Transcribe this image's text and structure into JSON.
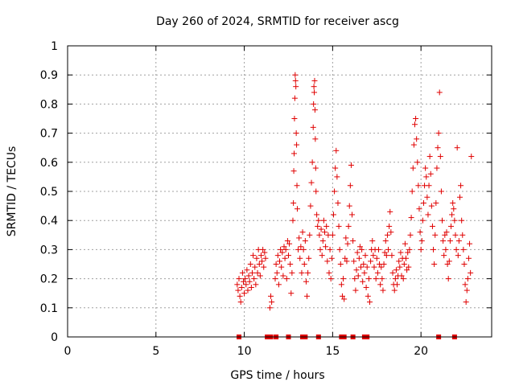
{
  "chart_data": {
    "type": "scatter",
    "title": "Day 260 of 2024, SRMTID for receiver ascg",
    "xlabel": "GPS time / hours",
    "ylabel": "SRMTID / TECUs",
    "xlim": [
      0,
      24
    ],
    "ylim": [
      0,
      1
    ],
    "xticks": [
      0,
      5,
      10,
      15,
      20
    ],
    "xtick_labels": [
      "0",
      "5",
      "10",
      "15",
      "20"
    ],
    "yticks": [
      0,
      0.1,
      0.2,
      0.3,
      0.4,
      0.5,
      0.6,
      0.7,
      0.8,
      0.9,
      1
    ],
    "ytick_labels": [
      "0",
      "0.1",
      "0.2",
      "0.3",
      "0.4",
      "0.5",
      "0.6",
      "0.7",
      "0.8",
      "0.9",
      "1"
    ],
    "grid": true,
    "marker": "+",
    "color": "#e00000",
    "series": [
      {
        "name": "SRMTID",
        "points": [
          [
            9.6,
            0.18
          ],
          [
            9.65,
            0.16
          ],
          [
            9.7,
            0.2
          ],
          [
            9.75,
            0.14
          ],
          [
            9.8,
            0.12
          ],
          [
            9.85,
            0.17
          ],
          [
            9.9,
            0.22
          ],
          [
            9.95,
            0.19
          ],
          [
            10.0,
            0.15
          ],
          [
            10.05,
            0.2
          ],
          [
            10.1,
            0.18
          ],
          [
            10.15,
            0.23
          ],
          [
            10.2,
            0.16
          ],
          [
            10.25,
            0.21
          ],
          [
            10.3,
            0.19
          ],
          [
            10.35,
            0.25
          ],
          [
            10.4,
            0.17
          ],
          [
            10.45,
            0.22
          ],
          [
            10.5,
            0.28
          ],
          [
            10.55,
            0.2
          ],
          [
            10.6,
            0.24
          ],
          [
            10.65,
            0.18
          ],
          [
            10.7,
            0.27
          ],
          [
            10.75,
            0.22
          ],
          [
            10.8,
            0.3
          ],
          [
            10.85,
            0.25
          ],
          [
            10.9,
            0.21
          ],
          [
            10.95,
            0.28
          ],
          [
            11.0,
            0.26
          ],
          [
            11.05,
            0.3
          ],
          [
            11.1,
            0.24
          ],
          [
            11.15,
            0.29
          ],
          [
            11.2,
            0.27
          ],
          [
            11.45,
            0.1
          ],
          [
            11.5,
            0.14
          ],
          [
            11.55,
            0.12
          ],
          [
            11.75,
            0.2
          ],
          [
            11.8,
            0.25
          ],
          [
            11.85,
            0.22
          ],
          [
            11.9,
            0.28
          ],
          [
            11.95,
            0.18
          ],
          [
            12.0,
            0.26
          ],
          [
            12.05,
            0.3
          ],
          [
            12.1,
            0.24
          ],
          [
            12.15,
            0.29
          ],
          [
            12.2,
            0.21
          ],
          [
            12.25,
            0.31
          ],
          [
            12.3,
            0.27
          ],
          [
            12.35,
            0.3
          ],
          [
            12.4,
            0.2
          ],
          [
            12.45,
            0.33
          ],
          [
            12.5,
            0.28
          ],
          [
            12.55,
            0.32
          ],
          [
            12.6,
            0.25
          ],
          [
            12.65,
            0.15
          ],
          [
            12.7,
            0.22
          ],
          [
            12.75,
            0.4
          ],
          [
            12.78,
            0.46
          ],
          [
            12.8,
            0.57
          ],
          [
            12.82,
            0.63
          ],
          [
            12.84,
            0.75
          ],
          [
            12.86,
            0.82
          ],
          [
            12.88,
            0.9
          ],
          [
            12.9,
            0.88
          ],
          [
            12.92,
            0.86
          ],
          [
            12.94,
            0.7
          ],
          [
            12.96,
            0.66
          ],
          [
            12.98,
            0.52
          ],
          [
            13.0,
            0.44
          ],
          [
            13.05,
            0.3
          ],
          [
            13.1,
            0.34
          ],
          [
            13.15,
            0.27
          ],
          [
            13.2,
            0.31
          ],
          [
            13.25,
            0.22
          ],
          [
            13.3,
            0.36
          ],
          [
            13.35,
            0.3
          ],
          [
            13.4,
            0.25
          ],
          [
            13.45,
            0.33
          ],
          [
            13.5,
            0.19
          ],
          [
            13.55,
            0.14
          ],
          [
            13.6,
            0.22
          ],
          [
            13.65,
            0.27
          ],
          [
            13.7,
            0.35
          ],
          [
            13.75,
            0.45
          ],
          [
            13.8,
            0.53
          ],
          [
            13.85,
            0.6
          ],
          [
            13.9,
            0.72
          ],
          [
            13.92,
            0.8
          ],
          [
            13.94,
            0.86
          ],
          [
            13.96,
            0.84
          ],
          [
            13.98,
            0.88
          ],
          [
            14.0,
            0.78
          ],
          [
            14.02,
            0.68
          ],
          [
            14.04,
            0.58
          ],
          [
            14.06,
            0.5
          ],
          [
            14.1,
            0.42
          ],
          [
            14.15,
            0.38
          ],
          [
            14.2,
            0.4
          ],
          [
            14.25,
            0.35
          ],
          [
            14.3,
            0.3
          ],
          [
            14.35,
            0.37
          ],
          [
            14.4,
            0.28
          ],
          [
            14.45,
            0.33
          ],
          [
            14.5,
            0.4
          ],
          [
            14.55,
            0.36
          ],
          [
            14.6,
            0.31
          ],
          [
            14.65,
            0.38
          ],
          [
            14.7,
            0.26
          ],
          [
            14.75,
            0.35
          ],
          [
            14.8,
            0.22
          ],
          [
            14.85,
            0.3
          ],
          [
            14.9,
            0.2
          ],
          [
            14.95,
            0.27
          ],
          [
            15.0,
            0.35
          ],
          [
            15.05,
            0.42
          ],
          [
            15.1,
            0.5
          ],
          [
            15.15,
            0.58
          ],
          [
            15.2,
            0.64
          ],
          [
            15.25,
            0.55
          ],
          [
            15.3,
            0.46
          ],
          [
            15.35,
            0.38
          ],
          [
            15.4,
            0.3
          ],
          [
            15.45,
            0.25
          ],
          [
            15.5,
            0.18
          ],
          [
            15.55,
            0.14
          ],
          [
            15.6,
            0.2
          ],
          [
            15.65,
            0.13
          ],
          [
            15.7,
            0.27
          ],
          [
            15.75,
            0.34
          ],
          [
            15.8,
            0.26
          ],
          [
            15.85,
            0.32
          ],
          [
            15.9,
            0.38
          ],
          [
            15.95,
            0.45
          ],
          [
            16.0,
            0.52
          ],
          [
            16.05,
            0.59
          ],
          [
            16.1,
            0.42
          ],
          [
            16.15,
            0.33
          ],
          [
            16.2,
            0.26
          ],
          [
            16.25,
            0.2
          ],
          [
            16.3,
            0.16
          ],
          [
            16.35,
            0.23
          ],
          [
            16.4,
            0.29
          ],
          [
            16.45,
            0.21
          ],
          [
            16.5,
            0.27
          ],
          [
            16.55,
            0.31
          ],
          [
            16.6,
            0.24
          ],
          [
            16.65,
            0.3
          ],
          [
            16.7,
            0.19
          ],
          [
            16.75,
            0.25
          ],
          [
            16.8,
            0.22
          ],
          [
            16.85,
            0.28
          ],
          [
            16.9,
            0.17
          ],
          [
            16.95,
            0.24
          ],
          [
            17.0,
            0.14
          ],
          [
            17.05,
            0.2
          ],
          [
            17.1,
            0.12
          ],
          [
            17.15,
            0.26
          ],
          [
            17.2,
            0.3
          ],
          [
            17.25,
            0.33
          ],
          [
            17.3,
            0.28
          ],
          [
            17.35,
            0.24
          ],
          [
            17.4,
            0.3
          ],
          [
            17.45,
            0.2
          ],
          [
            17.5,
            0.27
          ],
          [
            17.55,
            0.22
          ],
          [
            17.6,
            0.3
          ],
          [
            17.65,
            0.25
          ],
          [
            17.7,
            0.18
          ],
          [
            17.75,
            0.24
          ],
          [
            17.8,
            0.2
          ],
          [
            17.85,
            0.16
          ],
          [
            17.9,
            0.25
          ],
          [
            17.95,
            0.29
          ],
          [
            18.0,
            0.33
          ],
          [
            18.05,
            0.28
          ],
          [
            18.1,
            0.35
          ],
          [
            18.15,
            0.3
          ],
          [
            18.2,
            0.38
          ],
          [
            18.25,
            0.43
          ],
          [
            18.3,
            0.36
          ],
          [
            18.35,
            0.28
          ],
          [
            18.4,
            0.22
          ],
          [
            18.45,
            0.18
          ],
          [
            18.5,
            0.16
          ],
          [
            18.55,
            0.2
          ],
          [
            18.6,
            0.23
          ],
          [
            18.65,
            0.18
          ],
          [
            18.7,
            0.21
          ],
          [
            18.75,
            0.26
          ],
          [
            18.8,
            0.24
          ],
          [
            18.85,
            0.29
          ],
          [
            18.9,
            0.21
          ],
          [
            18.95,
            0.27
          ],
          [
            19.0,
            0.2
          ],
          [
            19.05,
            0.25
          ],
          [
            19.1,
            0.32
          ],
          [
            19.15,
            0.27
          ],
          [
            19.2,
            0.23
          ],
          [
            19.25,
            0.29
          ],
          [
            19.3,
            0.24
          ],
          [
            19.35,
            0.3
          ],
          [
            19.4,
            0.35
          ],
          [
            19.45,
            0.41
          ],
          [
            19.5,
            0.5
          ],
          [
            19.55,
            0.58
          ],
          [
            19.6,
            0.66
          ],
          [
            19.65,
            0.73
          ],
          [
            19.7,
            0.75
          ],
          [
            19.75,
            0.68
          ],
          [
            19.8,
            0.6
          ],
          [
            19.85,
            0.52
          ],
          [
            19.9,
            0.44
          ],
          [
            19.95,
            0.36
          ],
          [
            20.0,
            0.3
          ],
          [
            20.05,
            0.33
          ],
          [
            20.1,
            0.4
          ],
          [
            20.15,
            0.46
          ],
          [
            20.2,
            0.52
          ],
          [
            20.25,
            0.58
          ],
          [
            20.3,
            0.55
          ],
          [
            20.35,
            0.48
          ],
          [
            20.4,
            0.42
          ],
          [
            20.45,
            0.52
          ],
          [
            20.5,
            0.62
          ],
          [
            20.55,
            0.56
          ],
          [
            20.6,
            0.45
          ],
          [
            20.65,
            0.38
          ],
          [
            20.7,
            0.3
          ],
          [
            20.75,
            0.25
          ],
          [
            20.8,
            0.35
          ],
          [
            20.85,
            0.46
          ],
          [
            20.9,
            0.58
          ],
          [
            20.95,
            0.65
          ],
          [
            21.0,
            0.7
          ],
          [
            21.05,
            0.84
          ],
          [
            21.1,
            0.62
          ],
          [
            21.15,
            0.5
          ],
          [
            21.2,
            0.4
          ],
          [
            21.25,
            0.33
          ],
          [
            21.3,
            0.28
          ],
          [
            21.35,
            0.35
          ],
          [
            21.4,
            0.3
          ],
          [
            21.45,
            0.36
          ],
          [
            21.5,
            0.25
          ],
          [
            21.55,
            0.2
          ],
          [
            21.6,
            0.26
          ],
          [
            21.65,
            0.33
          ],
          [
            21.7,
            0.38
          ],
          [
            21.75,
            0.42
          ],
          [
            21.8,
            0.46
          ],
          [
            21.85,
            0.44
          ],
          [
            21.9,
            0.4
          ],
          [
            21.95,
            0.35
          ],
          [
            22.0,
            0.3
          ],
          [
            22.05,
            0.65
          ],
          [
            22.1,
            0.28
          ],
          [
            22.15,
            0.33
          ],
          [
            22.2,
            0.48
          ],
          [
            22.25,
            0.52
          ],
          [
            22.3,
            0.4
          ],
          [
            22.35,
            0.35
          ],
          [
            22.4,
            0.3
          ],
          [
            22.45,
            0.25
          ],
          [
            22.5,
            0.18
          ],
          [
            22.55,
            0.12
          ],
          [
            22.6,
            0.16
          ],
          [
            22.65,
            0.2
          ],
          [
            22.7,
            0.27
          ],
          [
            22.75,
            0.32
          ],
          [
            22.8,
            0.22
          ],
          [
            22.85,
            0.62
          ]
        ]
      }
    ],
    "zero_points_x": [
      9.7,
      11.3,
      11.5,
      11.8,
      12.5,
      13.3,
      13.45,
      14.2,
      15.5,
      15.65,
      16.15,
      16.8,
      16.95,
      21.0,
      21.9
    ]
  }
}
